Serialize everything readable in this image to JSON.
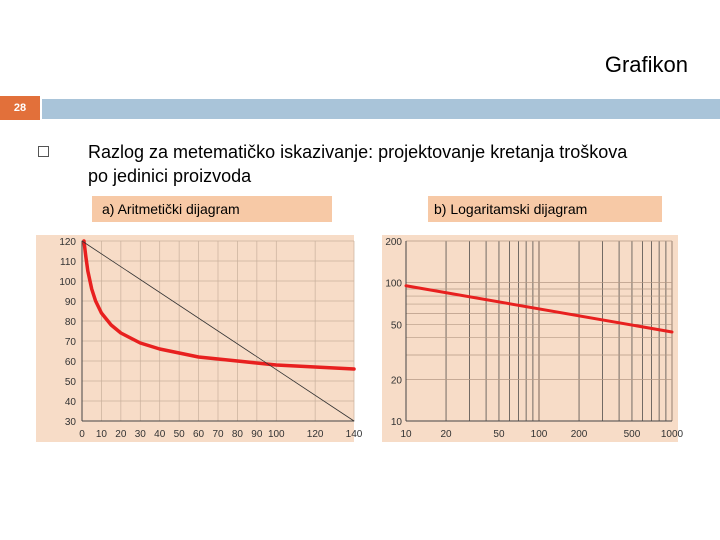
{
  "slide": {
    "title": "Grafikon",
    "number": "28",
    "body_line1": "Razlog za metematičko iskazivanje: projektovanje kretanja troškova",
    "body_line2": "po jedinici proizvoda",
    "bullet_icon": "square-bullet-icon",
    "accent_color": "#e2703a",
    "bar_color": "#a9c4d9",
    "label_bg": "#f7c9a6",
    "plot_bg": "#f7dcc7",
    "curve_color": "#e8201f"
  },
  "chart_data": [
    {
      "type": "line",
      "title": "a) Aritmetički dijagram",
      "xlabel": "",
      "ylabel": "",
      "x_ticks": [
        "0",
        "10",
        "20",
        "30",
        "40",
        "50",
        "60",
        "70",
        "80",
        "90",
        "100",
        "120",
        "140"
      ],
      "y_ticks": [
        "120",
        "110",
        "100",
        "90",
        "80",
        "70",
        "60",
        "50",
        "40",
        "30"
      ],
      "xlim": [
        0,
        140
      ],
      "ylim": [
        30,
        120
      ],
      "grid": true,
      "series": [
        {
          "x": [
            1,
            2,
            3,
            5,
            7,
            10,
            15,
            20,
            30,
            40,
            60,
            80,
            100,
            120,
            140
          ],
          "y": [
            120,
            112,
            105,
            96,
            90,
            84,
            78,
            74,
            69,
            66,
            62,
            60,
            58,
            57,
            56
          ]
        },
        {
          "x": [
            0,
            140
          ],
          "y": [
            120,
            30
          ]
        }
      ]
    },
    {
      "type": "line",
      "title": "b) Logaritamski dijagram",
      "xlabel": "",
      "ylabel": "",
      "x_scale": "log",
      "y_scale": "log",
      "x_ticks": [
        "10",
        "20",
        "50",
        "100",
        "200",
        "500",
        "1000"
      ],
      "y_ticks": [
        "200",
        "100",
        "50",
        "20",
        "10"
      ],
      "xlim": [
        10,
        1000
      ],
      "ylim": [
        10,
        200
      ],
      "grid": true,
      "series": [
        {
          "x": [
            10,
            1000
          ],
          "y": [
            95,
            44
          ]
        }
      ]
    }
  ]
}
